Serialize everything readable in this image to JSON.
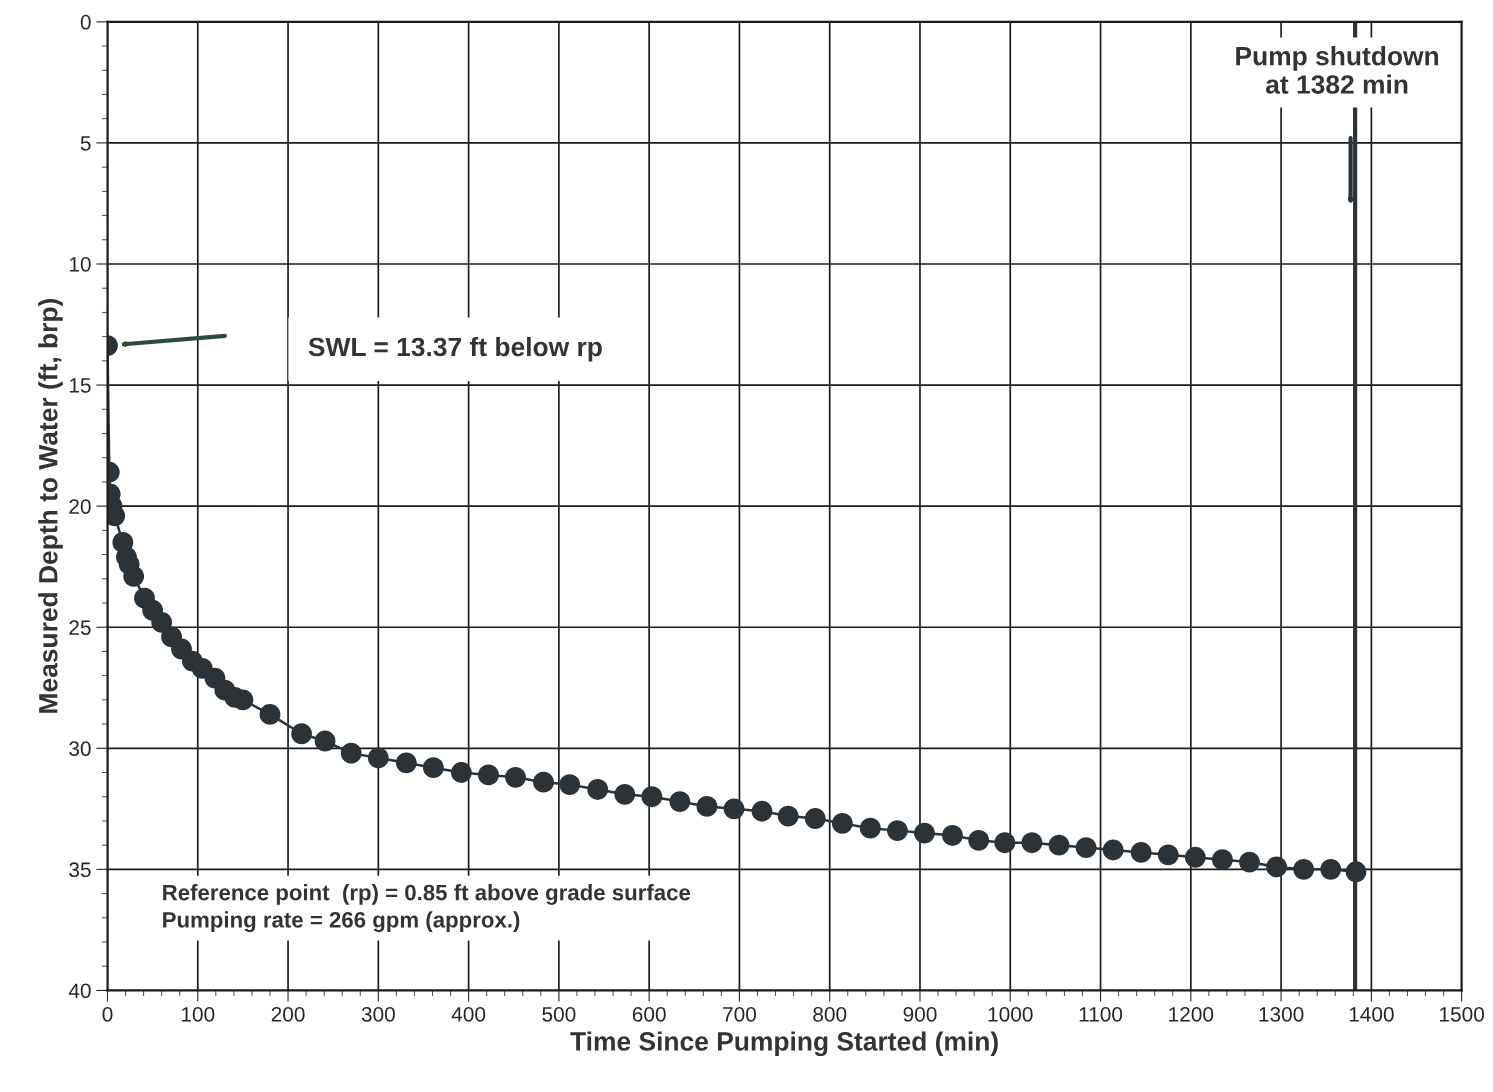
{
  "chart_data": {
    "type": "line",
    "xlabel": "Time Since Pumping Started (min)",
    "ylabel": "Measured Depth to Water (ft, brp)",
    "x": [
      0,
      2,
      3,
      5,
      8,
      17,
      21,
      24,
      29,
      41,
      50,
      60,
      71,
      82,
      94,
      105,
      119,
      130,
      141,
      150,
      180,
      215,
      241,
      270,
      300,
      331,
      361,
      392,
      422,
      452,
      483,
      512,
      543,
      573,
      603,
      634,
      664,
      694,
      725,
      754,
      784,
      814,
      845,
      875,
      905,
      936,
      965,
      994,
      1024,
      1054,
      1084,
      1114,
      1145,
      1175,
      1205,
      1235,
      1265,
      1295,
      1325,
      1355,
      1383
    ],
    "series": [
      {
        "color": "#2b3338",
        "values": [
          13.37,
          18.6,
          19.5,
          20.0,
          20.4,
          21.5,
          22.1,
          22.4,
          22.9,
          23.8,
          24.3,
          24.8,
          25.4,
          25.9,
          26.4,
          26.7,
          27.1,
          27.6,
          27.9,
          28.0,
          28.6,
          29.4,
          29.7,
          30.2,
          30.4,
          30.6,
          30.8,
          31.0,
          31.1,
          31.2,
          31.4,
          31.5,
          31.7,
          31.9,
          32.0,
          32.2,
          32.4,
          32.5,
          32.6,
          32.8,
          32.9,
          33.1,
          33.3,
          33.4,
          33.5,
          33.6,
          33.8,
          33.9,
          33.9,
          34.0,
          34.1,
          34.2,
          34.3,
          34.4,
          34.5,
          34.6,
          34.7,
          34.9,
          35.0,
          35.0,
          35.1
        ]
      }
    ],
    "xlim": [
      0,
      1500
    ],
    "ylim": [
      40,
      0
    ],
    "xticks": [
      0,
      100,
      200,
      300,
      400,
      500,
      600,
      700,
      800,
      900,
      1000,
      1100,
      1200,
      1300,
      1400,
      1500
    ],
    "yticks": [
      0,
      5,
      10,
      15,
      20,
      25,
      30,
      35,
      40
    ],
    "grid": true,
    "legend": false,
    "marker": "circle",
    "line_style": "solid",
    "ref_lines": [
      {
        "axis": "x",
        "value": 1382,
        "color": "#2b3338",
        "line_style": "solid"
      }
    ],
    "annotations": [
      "SWL = 13.37 ft below rp",
      "Pump shutdown\nat 1382 min",
      "Reference point  (rp) = 0.85 ft above grade surface",
      "Pumping rate = 266 gpm (approx.)"
    ]
  }
}
